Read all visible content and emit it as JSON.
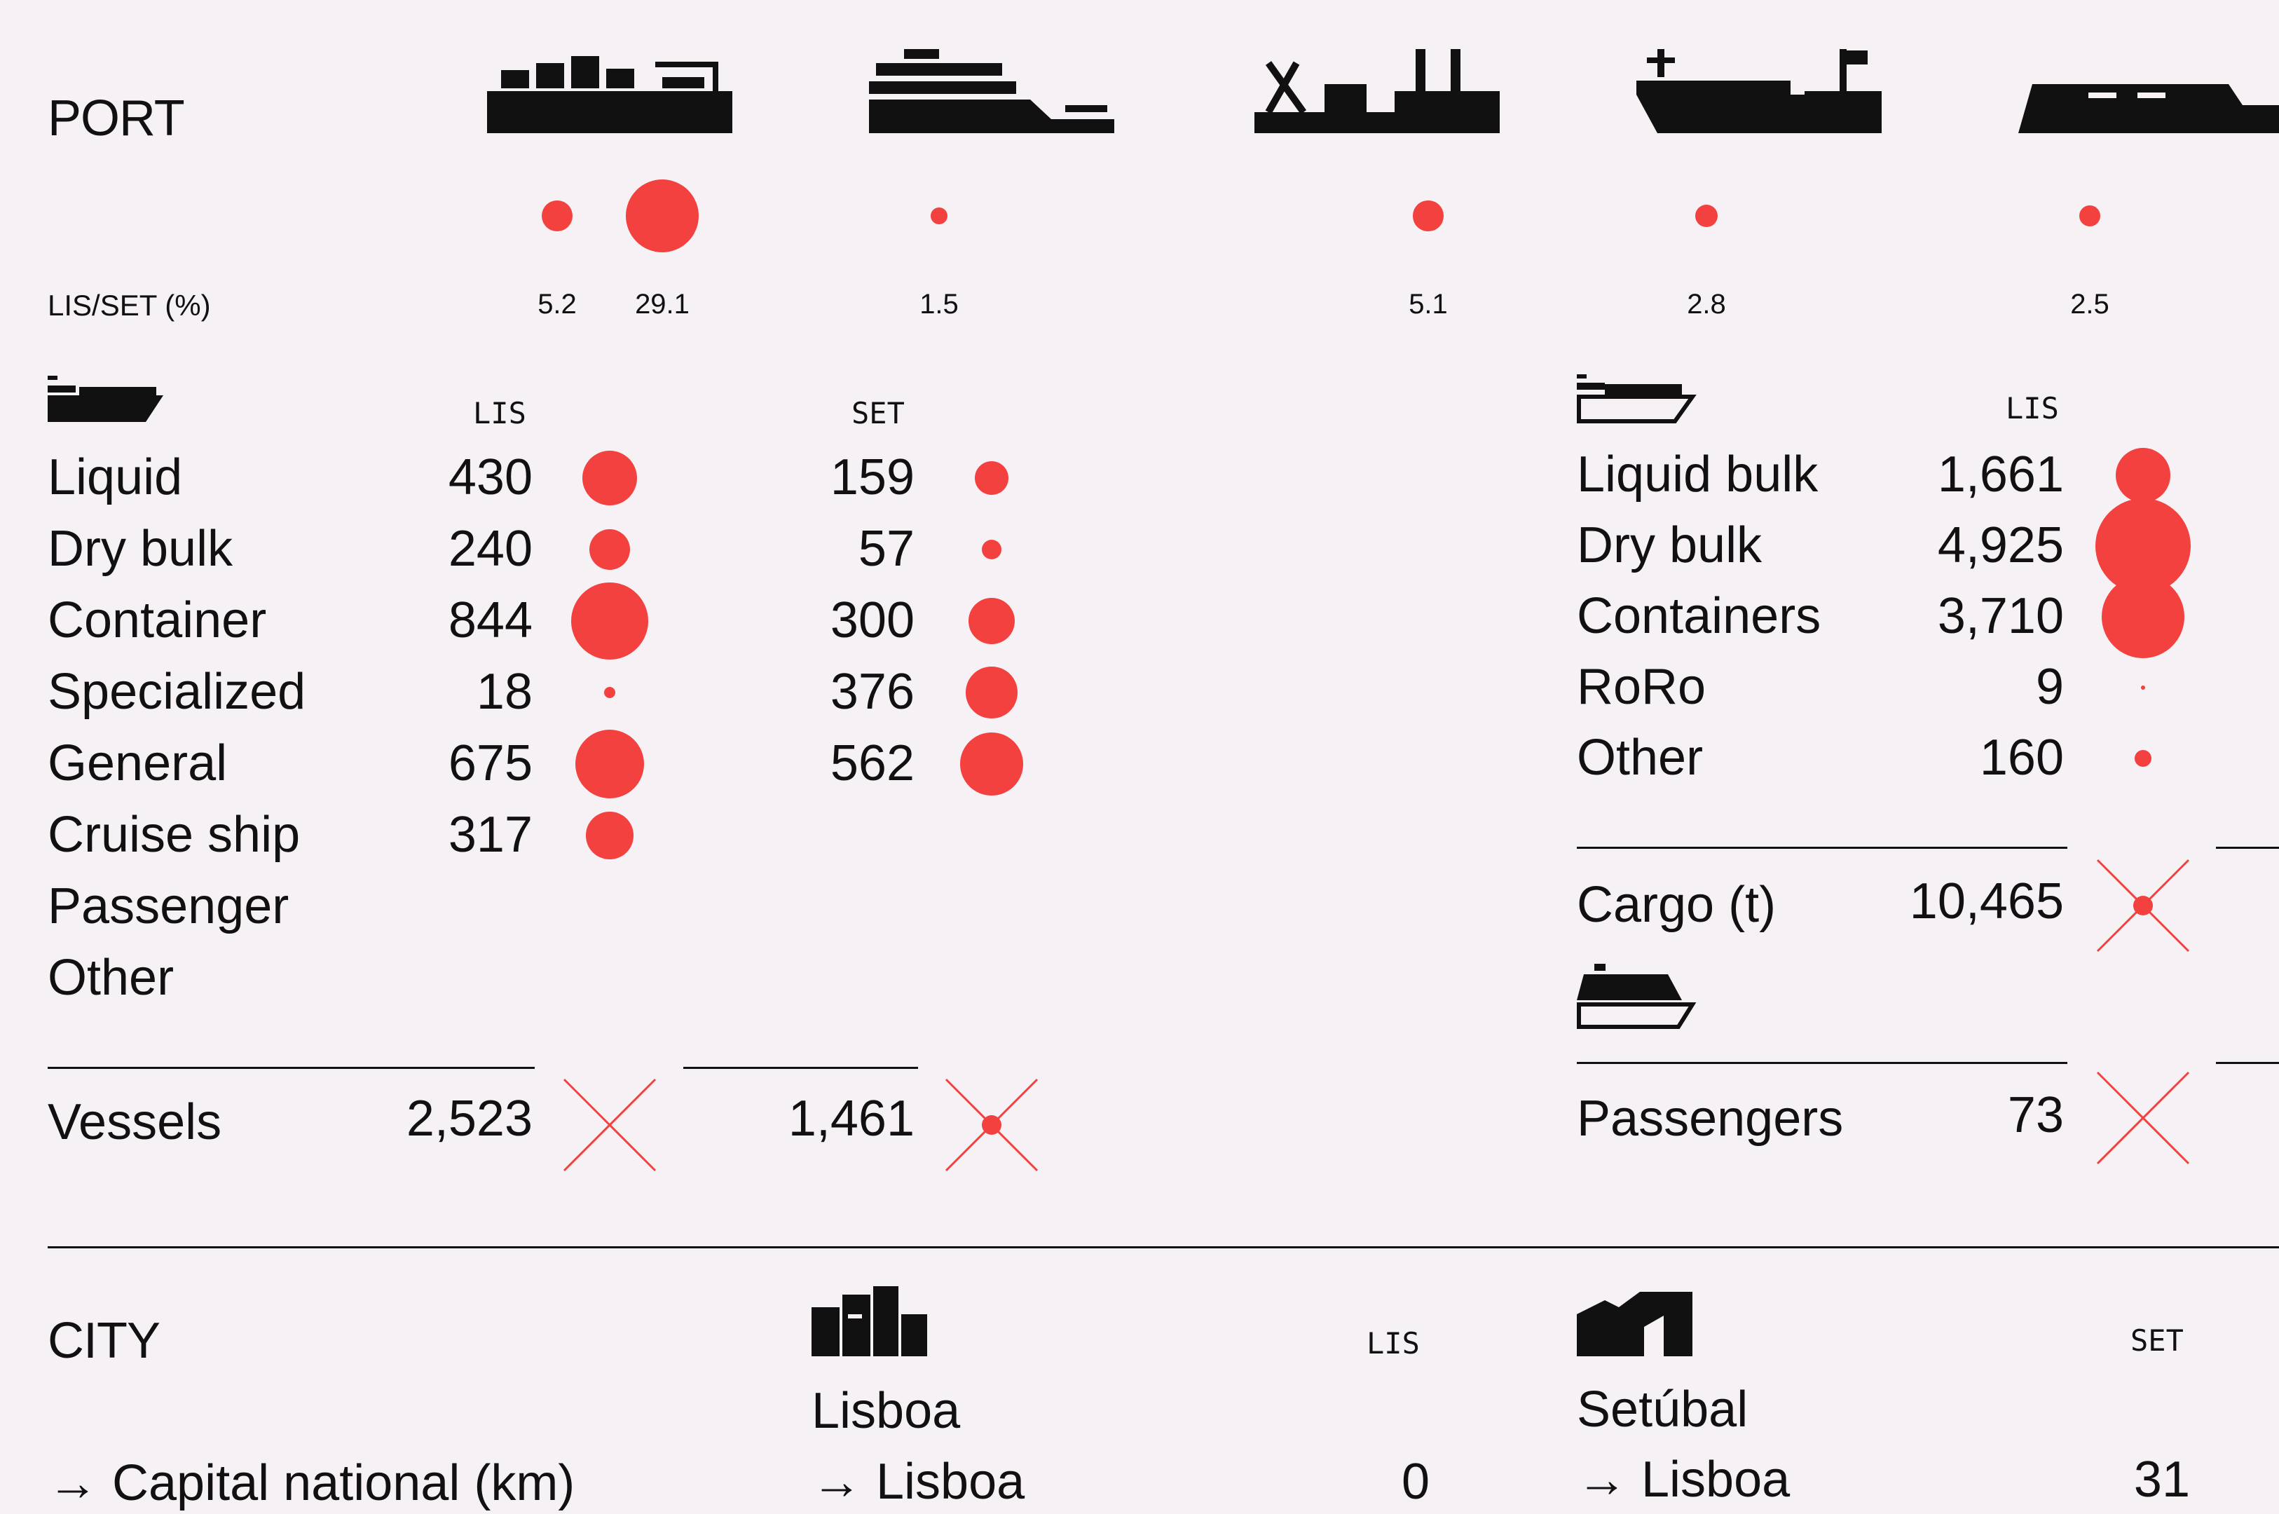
{
  "port": {
    "heading": "PORT",
    "ratio_label": "LIS/SET (%)",
    "ratios": [
      {
        "icon": "container-ship-icon",
        "values": [
          "5.2",
          "29.1"
        ]
      },
      {
        "icon": "cruise-ship-icon",
        "values": [
          "1.5"
        ]
      },
      {
        "icon": "dry-bulk-ship-icon",
        "values": [
          "5.1"
        ]
      },
      {
        "icon": "tanker-ship-icon",
        "values": [
          "2.8"
        ]
      },
      {
        "icon": "roro-ship-icon",
        "values": [
          "2.5"
        ]
      }
    ],
    "vessels": {
      "icon": "cargo-ship-icon",
      "lis_header": "LIS",
      "set_header": "SET",
      "rows": [
        {
          "label": "Liquid",
          "lis": "430",
          "set": "159"
        },
        {
          "label": "Dry bulk",
          "lis": "240",
          "set": "57"
        },
        {
          "label": "Container",
          "lis": "844",
          "set": "300"
        },
        {
          "label": "Specialized",
          "lis": "18",
          "set": "376"
        },
        {
          "label": "General",
          "lis": "675",
          "set": "562"
        },
        {
          "label": "Cruise ship",
          "lis": "317",
          "set": ""
        },
        {
          "label": "Passenger",
          "lis": "",
          "set": ""
        },
        {
          "label": "Other",
          "lis": "",
          "set": ""
        }
      ],
      "total_label": "Vessels",
      "total_lis": "2,523",
      "total_set": "1,461"
    },
    "cargo": {
      "icon": "cargo-ship-outline-icon",
      "lis_header": "LIS",
      "rows": [
        {
          "label": "Liquid bulk",
          "lis": "1,661"
        },
        {
          "label": "Dry bulk",
          "lis": "4,925"
        },
        {
          "label": "Containers",
          "lis": "3,710"
        },
        {
          "label": "RoRo",
          "lis": "9"
        },
        {
          "label": "Other",
          "lis": "160"
        }
      ],
      "total_label": "Cargo (t)",
      "total_lis": "10,465"
    },
    "passengers": {
      "icon": "ferry-icon",
      "label": "Passengers",
      "lis": "73"
    }
  },
  "city": {
    "heading": "CITY",
    "row_label": "→ Capital national (km)",
    "lisboa": {
      "icon": "lisboa-city-icon",
      "name": "Lisboa",
      "header": "LIS",
      "dest": "→ Lisboa",
      "value": "0"
    },
    "setubal": {
      "icon": "setubal-city-icon",
      "name": "Setúbal",
      "header": "SET",
      "dest": "→ Lisboa",
      "value": "31"
    }
  },
  "colors": {
    "accent": "#f2413f",
    "ink": "#111111",
    "paper": "#f6f1f4"
  },
  "chart_data": {
    "type": "scatter",
    "panels": [
      {
        "name": "LIS/SET (%)",
        "categories": [
          "container",
          "cruise",
          "dry bulk",
          "tanker",
          "roro"
        ],
        "values": [
          [
            5.2,
            29.1
          ],
          [
            1.5
          ],
          [
            5.1
          ],
          [
            2.8
          ],
          [
            2.5
          ]
        ]
      },
      {
        "name": "Vessels",
        "categories": [
          "Liquid",
          "Dry bulk",
          "Container",
          "Specialized",
          "General",
          "Cruise ship",
          "Passenger",
          "Other"
        ],
        "series": [
          {
            "name": "LIS",
            "values": [
              430,
              240,
              844,
              18,
              675,
              317,
              null,
              null
            ]
          },
          {
            "name": "SET",
            "values": [
              159,
              57,
              300,
              376,
              562,
              null,
              null,
              null
            ]
          }
        ],
        "totals": {
          "LIS": 2523,
          "SET": 1461
        }
      },
      {
        "name": "Cargo (t)",
        "categories": [
          "Liquid bulk",
          "Dry bulk",
          "Containers",
          "RoRo",
          "Other"
        ],
        "series": [
          {
            "name": "LIS",
            "values": [
              1661,
              4925,
              3710,
              9,
              160
            ]
          }
        ],
        "totals": {
          "LIS": 10465
        }
      },
      {
        "name": "Passengers",
        "series": [
          {
            "name": "LIS",
            "values": [
              73
            ]
          }
        ]
      }
    ]
  }
}
